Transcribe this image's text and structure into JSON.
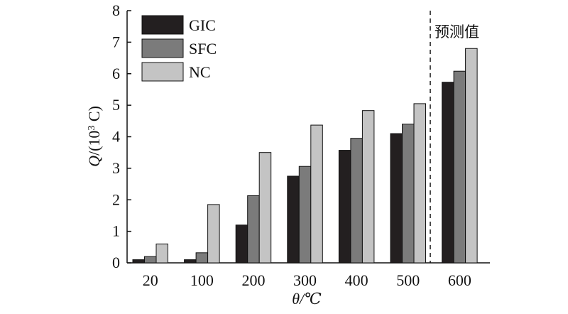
{
  "chart_data": {
    "type": "bar",
    "categories": [
      "20",
      "100",
      "200",
      "300",
      "400",
      "500",
      "600"
    ],
    "series": [
      {
        "name": "GIC",
        "color": "#231f20",
        "values": [
          0.1,
          0.1,
          1.2,
          2.75,
          3.57,
          4.1,
          5.73
        ]
      },
      {
        "name": "SFC",
        "color": "#7b7b7b",
        "values": [
          0.2,
          0.32,
          2.13,
          3.06,
          3.95,
          4.4,
          6.08
        ]
      },
      {
        "name": "NC",
        "color": "#c4c4c4",
        "values": [
          0.6,
          1.85,
          3.5,
          4.37,
          4.83,
          5.05,
          6.8
        ]
      }
    ],
    "xlabel": "θ/℃",
    "ylabel": "Q/(10³ C)",
    "ylim": [
      0,
      8
    ],
    "yticks": [
      "0",
      "1",
      "2",
      "3",
      "4",
      "5",
      "6",
      "7",
      "8"
    ],
    "grid": false,
    "legend_position": "top-left",
    "annotation": {
      "text": "预测值",
      "style": "dashed vertical line between 500 and 600"
    }
  }
}
